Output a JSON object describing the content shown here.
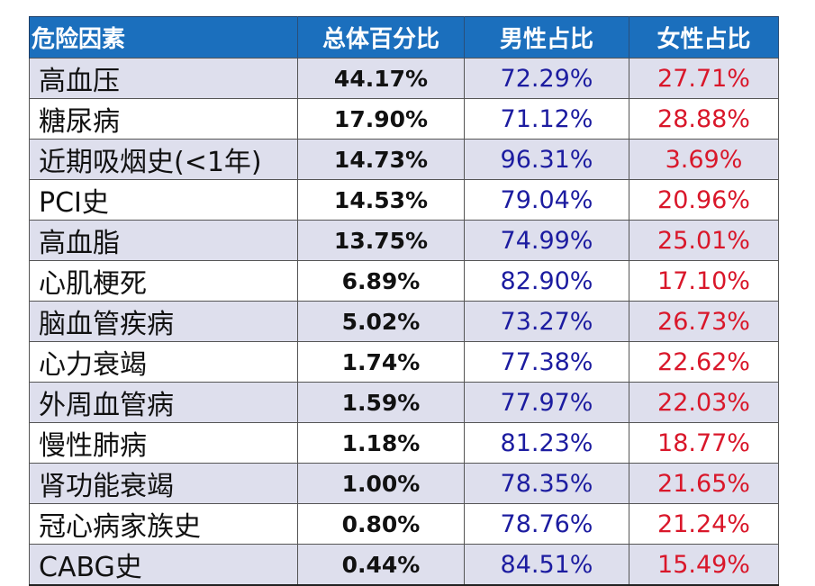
{
  "table": {
    "headers": [
      "危险因素",
      "总体百分比",
      "男性占比",
      "女性占比"
    ],
    "rows": [
      {
        "factor": "高血压",
        "total": "44.17%",
        "male": "72.29%",
        "female": "27.71%"
      },
      {
        "factor": "糖尿病",
        "total": "17.90%",
        "male": "71.12%",
        "female": "28.88%"
      },
      {
        "factor": "近期吸烟史(<1年)",
        "total": "14.73%",
        "male": "96.31%",
        "female": "3.69%"
      },
      {
        "factor": "PCI史",
        "total": "14.53%",
        "male": "79.04%",
        "female": "20.96%"
      },
      {
        "factor": "高血脂",
        "total": "13.75%",
        "male": "74.99%",
        "female": "25.01%"
      },
      {
        "factor": "心肌梗死",
        "total": "6.89%",
        "male": "82.90%",
        "female": "17.10%"
      },
      {
        "factor": "脑血管疾病",
        "total": "5.02%",
        "male": "73.27%",
        "female": "26.73%"
      },
      {
        "factor": "心力衰竭",
        "total": "1.74%",
        "male": "77.38%",
        "female": "22.62%"
      },
      {
        "factor": "外周血管病",
        "total": "1.59%",
        "male": "77.97%",
        "female": "22.03%"
      },
      {
        "factor": "慢性肺病",
        "total": "1.18%",
        "male": "81.23%",
        "female": "18.77%"
      },
      {
        "factor": "肾功能衰竭",
        "total": "1.00%",
        "male": "78.35%",
        "female": "21.65%"
      },
      {
        "factor": "冠心病家族史",
        "total": "0.80%",
        "male": "78.76%",
        "female": "21.24%"
      },
      {
        "factor": "CABG史",
        "total": "0.44%",
        "male": "84.51%",
        "female": "15.49%"
      }
    ]
  },
  "colors": {
    "header_bg": "#1b6fbd",
    "header_text": "#ffffff",
    "stripe": "#dedfed",
    "male_text": "#1c1ca0",
    "female_text": "#d9172a"
  },
  "chart_data": {
    "type": "table",
    "title": "",
    "columns": [
      "危险因素",
      "总体百分比",
      "男性占比",
      "女性占比"
    ],
    "categories": [
      "高血压",
      "糖尿病",
      "近期吸烟史(<1年)",
      "PCI史",
      "高血脂",
      "心肌梗死",
      "脑血管疾病",
      "心力衰竭",
      "外周血管病",
      "慢性肺病",
      "肾功能衰竭",
      "冠心病家族史",
      "CABG史"
    ],
    "series": [
      {
        "name": "总体百分比",
        "values": [
          44.17,
          17.9,
          14.73,
          14.53,
          13.75,
          6.89,
          5.02,
          1.74,
          1.59,
          1.18,
          1.0,
          0.8,
          0.44
        ]
      },
      {
        "name": "男性占比",
        "values": [
          72.29,
          71.12,
          96.31,
          79.04,
          74.99,
          82.9,
          73.27,
          77.38,
          77.97,
          81.23,
          78.35,
          78.76,
          84.51
        ]
      },
      {
        "name": "女性占比",
        "values": [
          27.71,
          28.88,
          3.69,
          20.96,
          25.01,
          17.1,
          26.73,
          22.62,
          22.03,
          18.77,
          21.65,
          21.24,
          15.49
        ]
      }
    ],
    "unit": "%"
  }
}
